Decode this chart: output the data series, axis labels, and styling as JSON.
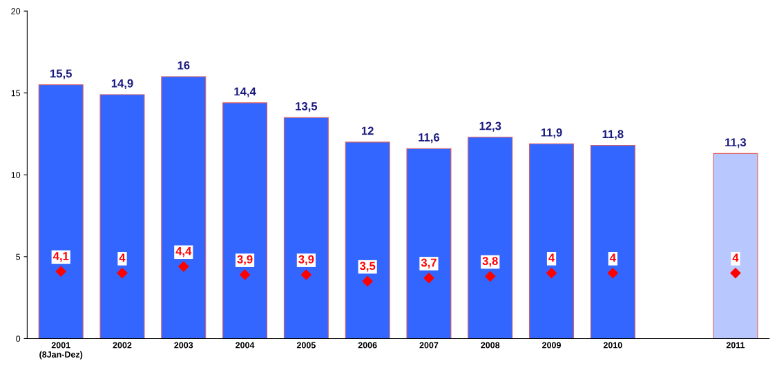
{
  "chart_data": {
    "type": "bar",
    "categories": [
      "2001\n(8Jan-Dez)",
      "2002",
      "2003",
      "2004",
      "2005",
      "2006",
      "2007",
      "2008",
      "2009",
      "2010",
      null,
      "2011"
    ],
    "series": [
      {
        "colors": [
          "#3366ff",
          "#3366ff",
          "#3366ff",
          "#3366ff",
          "#3366ff",
          "#3366ff",
          "#3366ff",
          "#3366ff",
          "#3366ff",
          "#3366ff",
          "#3366ff",
          "#b8c8ff"
        ],
        "values": [
          15.5,
          14.9,
          16,
          14.4,
          13.5,
          12,
          11.6,
          12.3,
          11.9,
          11.8,
          null,
          11.3
        ],
        "value_labels": [
          "15,5",
          "14,9",
          "16",
          "14,4",
          "13,5",
          "12",
          "11,6",
          "12,3",
          "11,9",
          "11,8",
          null,
          "11,3"
        ]
      },
      {
        "type": "scatter",
        "color": "#ff0000",
        "marker": "diamond",
        "values": [
          4.1,
          4,
          4.4,
          3.9,
          3.9,
          3.5,
          3.7,
          3.8,
          4,
          4,
          null,
          4
        ],
        "value_labels": [
          "4,1",
          "4",
          "4,4",
          "3,9",
          "3,9",
          "3,5",
          "3,7",
          "3,8",
          "4",
          "4",
          null,
          "4"
        ]
      }
    ],
    "ylim": [
      0,
      20
    ],
    "yticks": [
      0,
      5,
      10,
      15,
      20
    ],
    "grid": false,
    "legend": false
  }
}
